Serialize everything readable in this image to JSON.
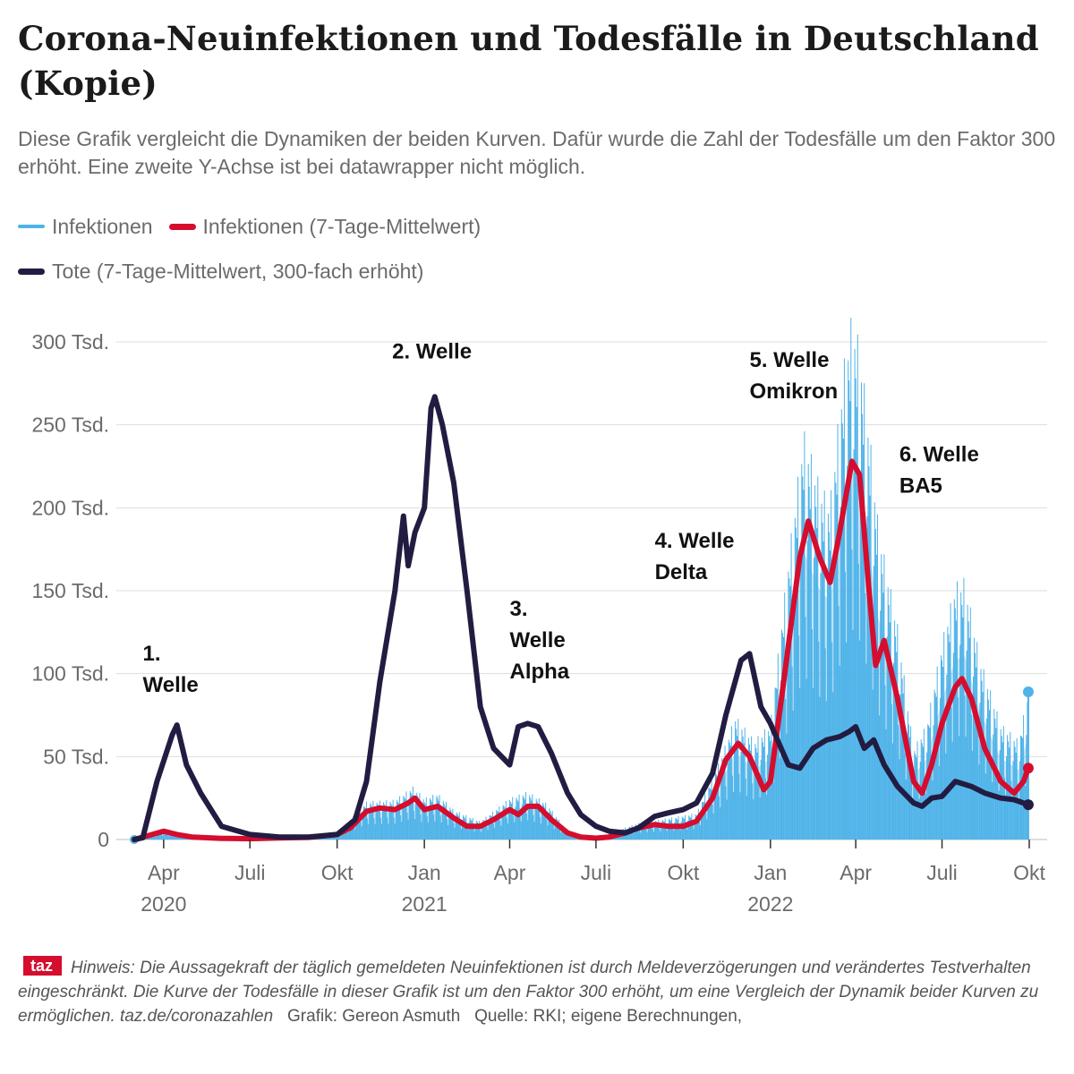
{
  "title": "Corona-Neuinfektionen und Todesfälle in Deutschland (Kopie)",
  "subtitle": "Diese Grafik vergleicht die Dynamiken der beiden Kurven. Dafür wurde die Zahl der Todesfälle um den Faktor 300 erhöht. Eine zweite Y-Achse ist bei datawrapper nicht möglich.",
  "legend": [
    {
      "label": "Infektionen",
      "color": "#4fb3e8"
    },
    {
      "label": "Infektionen (7-Tage-Mittelwert)",
      "color": "#d50d2e"
    },
    {
      "label": "Tote (7-Tage-Mittelwert, 300-fach erhöht)",
      "color": "#231c42"
    }
  ],
  "footer": {
    "logo": "taz",
    "note": "Hinweis: Die Aussagekraft der täglich gemeldeten Neuinfektionen ist durch Meldeverzögerungen und verändertes Testverhalten eingeschränkt. Die Kurve der Todesfälle in dieser Grafik ist um den Faktor 300 erhöht, um eine Vergleich der Dynamik beider Kurven zu ermöglichen. taz.de/coronazahlen",
    "credit": "Grafik: Gereon Asmuth",
    "source": "Quelle: RKI; eigene Berechnungen,"
  },
  "colors": {
    "infections": "#4fb3e8",
    "avg": "#d50d2e",
    "deaths": "#231c42",
    "grid": "#dddddd"
  },
  "chart_data": {
    "type": "line",
    "xlim": [
      "2020-03-01",
      "2022-10-01"
    ],
    "ylim": [
      0,
      300000
    ],
    "y_ticks": [
      {
        "value": 0,
        "label": "0"
      },
      {
        "value": 50000,
        "label": "50 Tsd."
      },
      {
        "value": 100000,
        "label": "100 Tsd."
      },
      {
        "value": 150000,
        "label": "150 Tsd."
      },
      {
        "value": 200000,
        "label": "200 Tsd."
      },
      {
        "value": 250000,
        "label": "250 Tsd."
      },
      {
        "value": 300000,
        "label": "300 Tsd."
      }
    ],
    "x_ticks": [
      {
        "date": "2020-04-01",
        "label": "Apr",
        "year": "2020"
      },
      {
        "date": "2020-07-01",
        "label": "Juli",
        "year": ""
      },
      {
        "date": "2020-10-01",
        "label": "Okt",
        "year": ""
      },
      {
        "date": "2021-01-01",
        "label": "Jan",
        "year": "2021"
      },
      {
        "date": "2021-04-01",
        "label": "Apr",
        "year": ""
      },
      {
        "date": "2021-07-01",
        "label": "Juli",
        "year": ""
      },
      {
        "date": "2021-10-01",
        "label": "Okt",
        "year": ""
      },
      {
        "date": "2022-01-01",
        "label": "Jan",
        "year": "2022"
      },
      {
        "date": "2022-04-01",
        "label": "Apr",
        "year": ""
      },
      {
        "date": "2022-07-01",
        "label": "Juli",
        "year": ""
      },
      {
        "date": "2022-10-01",
        "label": "Okt",
        "year": ""
      }
    ],
    "series": [
      {
        "name": "Infektionen (7-Tage-Mittelwert)",
        "points": [
          [
            "2020-03-01",
            0
          ],
          [
            "2020-03-20",
            3000
          ],
          [
            "2020-04-01",
            5000
          ],
          [
            "2020-04-15",
            3000
          ],
          [
            "2020-05-01",
            1500
          ],
          [
            "2020-06-01",
            700
          ],
          [
            "2020-07-01",
            500
          ],
          [
            "2020-08-01",
            900
          ],
          [
            "2020-09-01",
            1300
          ],
          [
            "2020-10-01",
            3000
          ],
          [
            "2020-10-15",
            7000
          ],
          [
            "2020-11-01",
            17000
          ],
          [
            "2020-11-15",
            19000
          ],
          [
            "2020-12-01",
            18000
          ],
          [
            "2020-12-15",
            22000
          ],
          [
            "2020-12-22",
            25000
          ],
          [
            "2021-01-01",
            18000
          ],
          [
            "2021-01-15",
            20000
          ],
          [
            "2021-02-01",
            13000
          ],
          [
            "2021-02-15",
            8000
          ],
          [
            "2021-03-01",
            8000
          ],
          [
            "2021-03-15",
            12000
          ],
          [
            "2021-04-01",
            18000
          ],
          [
            "2021-04-10",
            15000
          ],
          [
            "2021-04-20",
            20000
          ],
          [
            "2021-05-01",
            20000
          ],
          [
            "2021-05-15",
            12000
          ],
          [
            "2021-06-01",
            4000
          ],
          [
            "2021-06-15",
            1500
          ],
          [
            "2021-07-01",
            800
          ],
          [
            "2021-07-15",
            1500
          ],
          [
            "2021-08-01",
            4000
          ],
          [
            "2021-08-15",
            7000
          ],
          [
            "2021-09-01",
            9000
          ],
          [
            "2021-09-15",
            8000
          ],
          [
            "2021-10-01",
            8000
          ],
          [
            "2021-10-15",
            11000
          ],
          [
            "2021-11-01",
            25000
          ],
          [
            "2021-11-15",
            48000
          ],
          [
            "2021-11-28",
            58000
          ],
          [
            "2021-12-10",
            50000
          ],
          [
            "2021-12-25",
            30000
          ],
          [
            "2022-01-01",
            35000
          ],
          [
            "2022-01-15",
            95000
          ],
          [
            "2022-02-01",
            170000
          ],
          [
            "2022-02-10",
            192000
          ],
          [
            "2022-02-22",
            170000
          ],
          [
            "2022-03-05",
            155000
          ],
          [
            "2022-03-15",
            185000
          ],
          [
            "2022-03-28",
            228000
          ],
          [
            "2022-04-05",
            220000
          ],
          [
            "2022-04-15",
            150000
          ],
          [
            "2022-04-22",
            105000
          ],
          [
            "2022-05-01",
            120000
          ],
          [
            "2022-05-15",
            85000
          ],
          [
            "2022-06-01",
            35000
          ],
          [
            "2022-06-10",
            28000
          ],
          [
            "2022-06-20",
            45000
          ],
          [
            "2022-07-01",
            70000
          ],
          [
            "2022-07-15",
            92000
          ],
          [
            "2022-07-22",
            97000
          ],
          [
            "2022-08-01",
            85000
          ],
          [
            "2022-08-15",
            55000
          ],
          [
            "2022-09-01",
            35000
          ],
          [
            "2022-09-15",
            28000
          ],
          [
            "2022-09-25",
            35000
          ],
          [
            "2022-09-30",
            43000
          ]
        ]
      },
      {
        "name": "Tote (7-Tage-Mittelwert, 300-fach erhöht)",
        "points": [
          [
            "2020-03-01",
            0
          ],
          [
            "2020-03-10",
            1000
          ],
          [
            "2020-03-25",
            35000
          ],
          [
            "2020-04-10",
            63000
          ],
          [
            "2020-04-15",
            69000
          ],
          [
            "2020-04-25",
            45000
          ],
          [
            "2020-05-10",
            28000
          ],
          [
            "2020-06-01",
            8000
          ],
          [
            "2020-07-01",
            3000
          ],
          [
            "2020-08-01",
            1500
          ],
          [
            "2020-09-01",
            1500
          ],
          [
            "2020-10-01",
            3000
          ],
          [
            "2020-10-20",
            12000
          ],
          [
            "2020-11-01",
            35000
          ],
          [
            "2020-11-15",
            95000
          ],
          [
            "2020-12-01",
            150000
          ],
          [
            "2020-12-10",
            195000
          ],
          [
            "2020-12-15",
            165000
          ],
          [
            "2020-12-22",
            185000
          ],
          [
            "2021-01-01",
            200000
          ],
          [
            "2021-01-08",
            260000
          ],
          [
            "2021-01-12",
            267000
          ],
          [
            "2021-01-20",
            250000
          ],
          [
            "2021-02-01",
            215000
          ],
          [
            "2021-02-15",
            150000
          ],
          [
            "2021-03-01",
            80000
          ],
          [
            "2021-03-15",
            55000
          ],
          [
            "2021-04-01",
            45000
          ],
          [
            "2021-04-10",
            68000
          ],
          [
            "2021-04-20",
            70000
          ],
          [
            "2021-05-01",
            68000
          ],
          [
            "2021-05-15",
            52000
          ],
          [
            "2021-06-01",
            28000
          ],
          [
            "2021-06-15",
            15000
          ],
          [
            "2021-07-01",
            8000
          ],
          [
            "2021-07-15",
            5000
          ],
          [
            "2021-08-01",
            4000
          ],
          [
            "2021-08-15",
            7000
          ],
          [
            "2021-09-01",
            14000
          ],
          [
            "2021-09-15",
            16000
          ],
          [
            "2021-10-01",
            18000
          ],
          [
            "2021-10-15",
            22000
          ],
          [
            "2021-11-01",
            40000
          ],
          [
            "2021-11-15",
            75000
          ],
          [
            "2021-12-01",
            108000
          ],
          [
            "2021-12-10",
            112000
          ],
          [
            "2021-12-22",
            80000
          ],
          [
            "2022-01-01",
            70000
          ],
          [
            "2022-01-10",
            58000
          ],
          [
            "2022-01-20",
            45000
          ],
          [
            "2022-02-01",
            43000
          ],
          [
            "2022-02-15",
            55000
          ],
          [
            "2022-03-01",
            60000
          ],
          [
            "2022-03-15",
            62000
          ],
          [
            "2022-03-25",
            65000
          ],
          [
            "2022-04-01",
            68000
          ],
          [
            "2022-04-10",
            55000
          ],
          [
            "2022-04-20",
            60000
          ],
          [
            "2022-05-01",
            45000
          ],
          [
            "2022-05-15",
            32000
          ],
          [
            "2022-06-01",
            22000
          ],
          [
            "2022-06-10",
            20000
          ],
          [
            "2022-06-20",
            25000
          ],
          [
            "2022-07-01",
            26000
          ],
          [
            "2022-07-15",
            35000
          ],
          [
            "2022-08-01",
            32000
          ],
          [
            "2022-08-15",
            28000
          ],
          [
            "2022-09-01",
            25000
          ],
          [
            "2022-09-15",
            24000
          ],
          [
            "2022-09-30",
            21000
          ]
        ]
      }
    ],
    "daily_envelope": {
      "name": "Infektionen",
      "points": [
        [
          "2020-03-01",
          0
        ],
        [
          "2020-04-01",
          6000
        ],
        [
          "2020-05-01",
          2000
        ],
        [
          "2020-06-01",
          800
        ],
        [
          "2020-08-01",
          1200
        ],
        [
          "2020-10-01",
          3500
        ],
        [
          "2020-11-01",
          23000
        ],
        [
          "2020-12-01",
          24000
        ],
        [
          "2020-12-20",
          32000
        ],
        [
          "2021-01-01",
          25000
        ],
        [
          "2021-01-15",
          28000
        ],
        [
          "2021-02-01",
          18000
        ],
        [
          "2021-03-01",
          11000
        ],
        [
          "2021-04-01",
          25000
        ],
        [
          "2021-04-20",
          29000
        ],
        [
          "2021-05-10",
          22000
        ],
        [
          "2021-06-01",
          5000
        ],
        [
          "2021-07-01",
          1200
        ],
        [
          "2021-08-15",
          10000
        ],
        [
          "2021-09-15",
          13000
        ],
        [
          "2021-10-15",
          16000
        ],
        [
          "2021-11-10",
          50000
        ],
        [
          "2021-11-25",
          75000
        ],
        [
          "2021-12-15",
          60000
        ],
        [
          "2022-01-01",
          70000
        ],
        [
          "2022-01-20",
          170000
        ],
        [
          "2022-02-05",
          248000
        ],
        [
          "2022-02-22",
          215000
        ],
        [
          "2022-03-05",
          205000
        ],
        [
          "2022-03-20",
          290000
        ],
        [
          "2022-03-28",
          318000
        ],
        [
          "2022-04-05",
          300000
        ],
        [
          "2022-04-15",
          250000
        ],
        [
          "2022-04-25",
          190000
        ],
        [
          "2022-05-15",
          130000
        ],
        [
          "2022-06-01",
          55000
        ],
        [
          "2022-06-15",
          70000
        ],
        [
          "2022-07-01",
          120000
        ],
        [
          "2022-07-15",
          155000
        ],
        [
          "2022-07-25",
          158000
        ],
        [
          "2022-08-10",
          110000
        ],
        [
          "2022-09-01",
          70000
        ],
        [
          "2022-09-20",
          60000
        ],
        [
          "2022-09-30",
          90000
        ]
      ]
    },
    "last_point": {
      "date": "2022-09-30",
      "value": 89000
    },
    "annotations": [
      {
        "lines": [
          "1.",
          "Welle"
        ],
        "date": "2020-03-10",
        "value": 108000
      },
      {
        "lines": [
          "2. Welle"
        ],
        "date": "2020-11-28",
        "value": 290000
      },
      {
        "lines": [
          "3.",
          "Welle",
          "Alpha"
        ],
        "date": "2021-04-01",
        "value": 135000
      },
      {
        "lines": [
          "4. Welle",
          "Delta"
        ],
        "date": "2021-09-01",
        "value": 176000
      },
      {
        "lines": [
          "5. Welle",
          "Omikron"
        ],
        "date": "2021-12-10",
        "value": 285000
      },
      {
        "lines": [
          "6. Welle",
          "BA5"
        ],
        "date": "2022-05-17",
        "value": 228000
      }
    ]
  }
}
